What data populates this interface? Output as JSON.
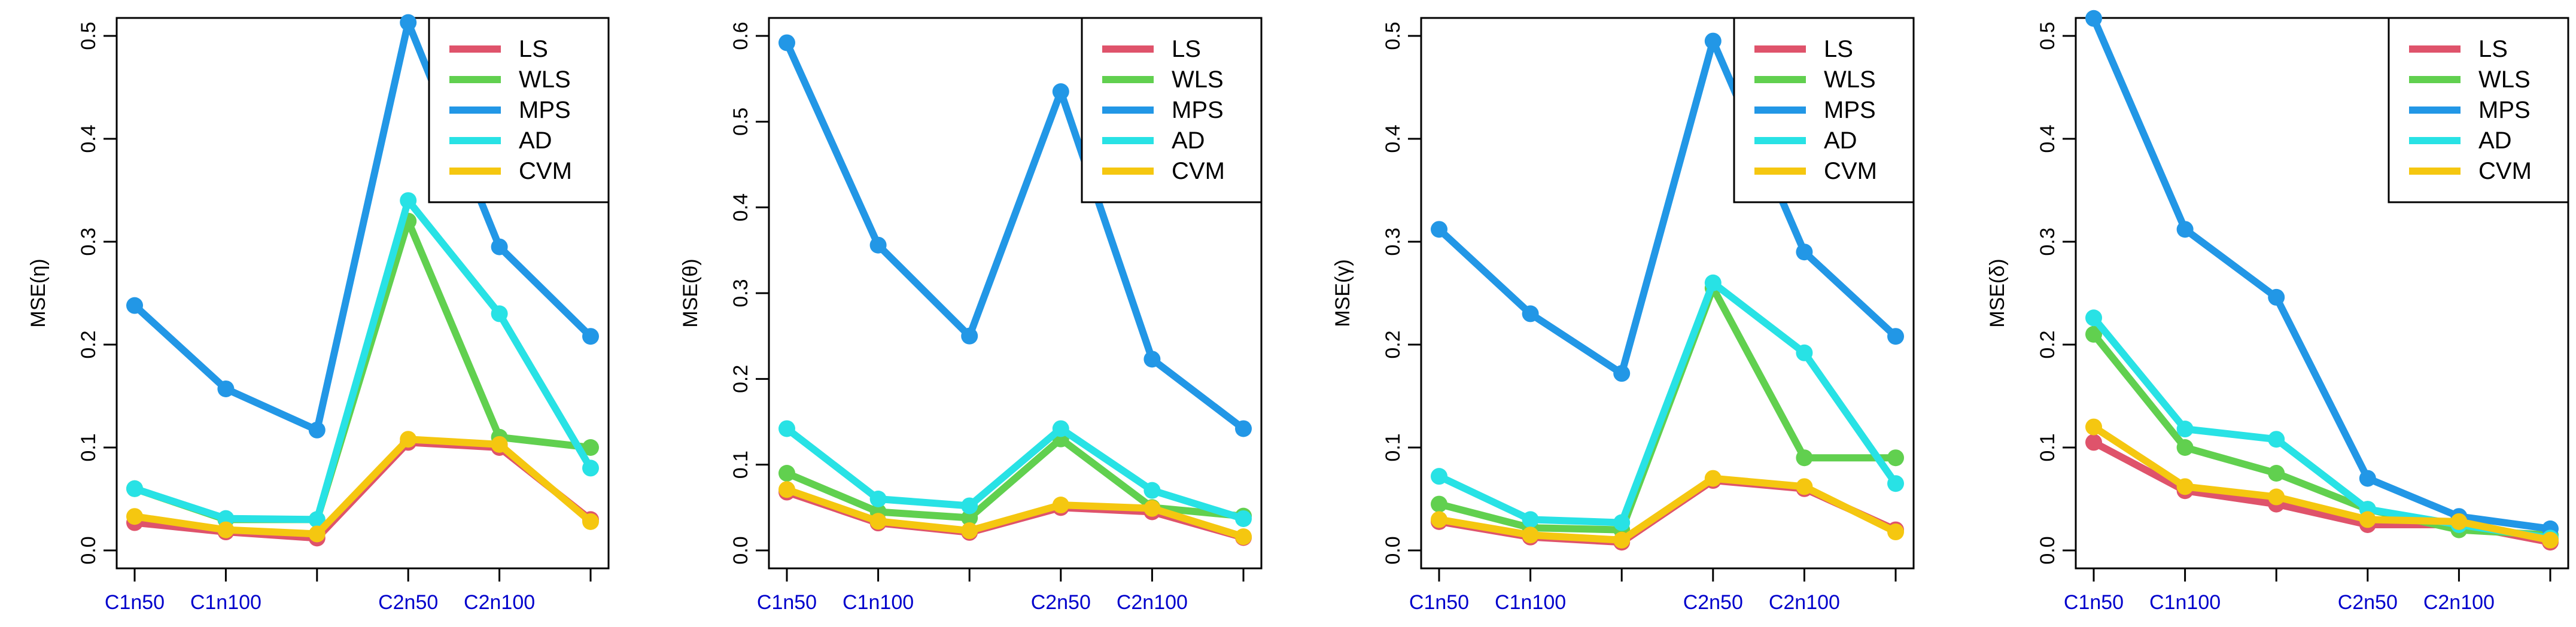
{
  "colors": {
    "LS": "#DF536B",
    "WLS": "#61D04F",
    "MPS": "#2297E6",
    "AD": "#28E2E5",
    "CVM": "#F5C710",
    "tick_label_x": "#0000CC",
    "axis": "#000000"
  },
  "chart_data": [
    {
      "type": "line",
      "ylabel": "MSE(η)",
      "ylim": [
        0,
        0.5
      ],
      "yticks": [
        0,
        0.1,
        0.2,
        0.3,
        0.4,
        0.5
      ],
      "ytick_labels": [
        "0.0",
        "0.1",
        "0.2",
        "0.3",
        "0.4",
        "0.5"
      ],
      "x": [
        1,
        2,
        3,
        4,
        5,
        6
      ],
      "xtick_labels": [
        "C1n50",
        "C1n100",
        "",
        "C2n50",
        "C2n100",
        ""
      ],
      "legend_position": "top-right",
      "series": [
        {
          "name": "LS",
          "values": [
            0.027,
            0.018,
            0.012,
            0.105,
            0.1,
            0.03
          ]
        },
        {
          "name": "WLS",
          "values": [
            0.06,
            0.03,
            0.03,
            0.32,
            0.11,
            0.1
          ]
        },
        {
          "name": "MPS",
          "values": [
            0.238,
            0.157,
            0.117,
            0.513,
            0.295,
            0.208
          ]
        },
        {
          "name": "AD",
          "values": [
            0.06,
            0.031,
            0.03,
            0.34,
            0.23,
            0.08
          ]
        },
        {
          "name": "CVM",
          "values": [
            0.033,
            0.02,
            0.016,
            0.108,
            0.103,
            0.028
          ]
        }
      ]
    },
    {
      "type": "line",
      "ylabel": "MSE(θ)",
      "ylim": [
        0,
        0.6
      ],
      "yticks": [
        0,
        0.1,
        0.2,
        0.3,
        0.4,
        0.5,
        0.6
      ],
      "ytick_labels": [
        "0.0",
        "0.1",
        "0.2",
        "0.3",
        "0.4",
        "0.5",
        "0.6"
      ],
      "x": [
        1,
        2,
        3,
        4,
        5,
        6
      ],
      "xtick_labels": [
        "C1n50",
        "C1n100",
        "",
        "C2n50",
        "C2n100",
        ""
      ],
      "legend_position": "top-right",
      "series": [
        {
          "name": "LS",
          "values": [
            0.068,
            0.032,
            0.021,
            0.05,
            0.045,
            0.015
          ]
        },
        {
          "name": "WLS",
          "values": [
            0.09,
            0.045,
            0.038,
            0.13,
            0.05,
            0.04
          ]
        },
        {
          "name": "MPS",
          "values": [
            0.592,
            0.356,
            0.25,
            0.535,
            0.223,
            0.142
          ]
        },
        {
          "name": "AD",
          "values": [
            0.142,
            0.06,
            0.052,
            0.142,
            0.07,
            0.037
          ]
        },
        {
          "name": "CVM",
          "values": [
            0.071,
            0.034,
            0.023,
            0.053,
            0.049,
            0.016
          ]
        }
      ]
    },
    {
      "type": "line",
      "ylabel": "MSE(γ)",
      "ylim": [
        0,
        0.5
      ],
      "yticks": [
        0,
        0.1,
        0.2,
        0.3,
        0.4,
        0.5
      ],
      "ytick_labels": [
        "0.0",
        "0.1",
        "0.2",
        "0.3",
        "0.4",
        "0.5"
      ],
      "x": [
        1,
        2,
        3,
        4,
        5,
        6
      ],
      "xtick_labels": [
        "C1n50",
        "C1n100",
        "",
        "C2n50",
        "C2n100",
        ""
      ],
      "legend_position": "top-right",
      "series": [
        {
          "name": "LS",
          "values": [
            0.028,
            0.013,
            0.008,
            0.068,
            0.06,
            0.02
          ]
        },
        {
          "name": "WLS",
          "values": [
            0.045,
            0.022,
            0.02,
            0.255,
            0.09,
            0.09
          ]
        },
        {
          "name": "MPS",
          "values": [
            0.312,
            0.23,
            0.172,
            0.495,
            0.29,
            0.208
          ]
        },
        {
          "name": "AD",
          "values": [
            0.072,
            0.03,
            0.027,
            0.26,
            0.192,
            0.065
          ]
        },
        {
          "name": "CVM",
          "values": [
            0.03,
            0.015,
            0.01,
            0.07,
            0.062,
            0.018
          ]
        }
      ]
    },
    {
      "type": "line",
      "ylabel": "MSE(δ)",
      "ylim": [
        0,
        0.5
      ],
      "yticks": [
        0,
        0.1,
        0.2,
        0.3,
        0.4,
        0.5
      ],
      "ytick_labels": [
        "0.0",
        "0.1",
        "0.2",
        "0.3",
        "0.4",
        "0.5"
      ],
      "x": [
        1,
        2,
        3,
        4,
        5,
        6
      ],
      "xtick_labels": [
        "C1n50",
        "C1n100",
        "",
        "C2n50",
        "C2n100",
        ""
      ],
      "legend_position": "top-right",
      "series": [
        {
          "name": "LS",
          "values": [
            0.105,
            0.058,
            0.045,
            0.025,
            0.025,
            0.008
          ]
        },
        {
          "name": "WLS",
          "values": [
            0.21,
            0.1,
            0.075,
            0.04,
            0.02,
            0.015
          ]
        },
        {
          "name": "MPS",
          "values": [
            0.517,
            0.312,
            0.246,
            0.07,
            0.033,
            0.021
          ]
        },
        {
          "name": "AD",
          "values": [
            0.226,
            0.118,
            0.108,
            0.04,
            0.025,
            0.012
          ]
        },
        {
          "name": "CVM",
          "values": [
            0.12,
            0.062,
            0.052,
            0.03,
            0.028,
            0.01
          ]
        }
      ]
    }
  ]
}
